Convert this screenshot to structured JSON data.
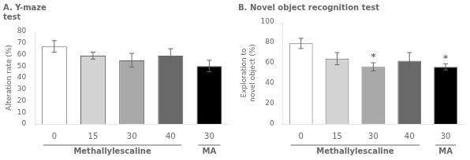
{
  "chart_data": [
    {
      "type": "bar",
      "title": "A. Y-maze\ntest",
      "ylabel": "Alteration rate (%)",
      "categories": [
        "0",
        "15",
        "30",
        "40",
        "30"
      ],
      "values": [
        67,
        59,
        55,
        59,
        50
      ],
      "errors": [
        5,
        3,
        6,
        6,
        5
      ],
      "colors": [
        "#ffffff",
        "#d3d3d3",
        "#a9a9a9",
        "#696969",
        "#000000"
      ],
      "ylim": [
        0,
        80
      ],
      "yticks": [
        0,
        10,
        20,
        30,
        40,
        50,
        60,
        70,
        80
      ],
      "grid": false,
      "legend": false,
      "groups": [
        {
          "label": "Methallylescaline",
          "bars": [
            0,
            1,
            2,
            3
          ]
        },
        {
          "label": "MA",
          "bars": [
            4
          ]
        }
      ]
    },
    {
      "type": "bar",
      "title": "B. Novel object recognition test",
      "ylabel": "Exploration to\nnovel object (%)",
      "categories": [
        "0",
        "15",
        "30",
        "40",
        "30"
      ],
      "values": [
        79,
        64,
        56,
        62,
        56
      ],
      "errors": [
        5,
        6,
        4,
        8,
        3
      ],
      "colors": [
        "#ffffff",
        "#d3d3d3",
        "#a9a9a9",
        "#696969",
        "#000000"
      ],
      "ylim": [
        0,
        100
      ],
      "yticks": [
        0,
        20,
        40,
        60,
        80,
        100
      ],
      "grid": false,
      "legend": false,
      "annotations": [
        {
          "text": "*",
          "bar": 2
        },
        {
          "text": "*",
          "bar": 4
        }
      ],
      "groups": [
        {
          "label": "Methallylescaline",
          "bars": [
            0,
            1,
            2,
            3
          ]
        },
        {
          "label": "MA",
          "bars": [
            4
          ]
        }
      ]
    }
  ]
}
